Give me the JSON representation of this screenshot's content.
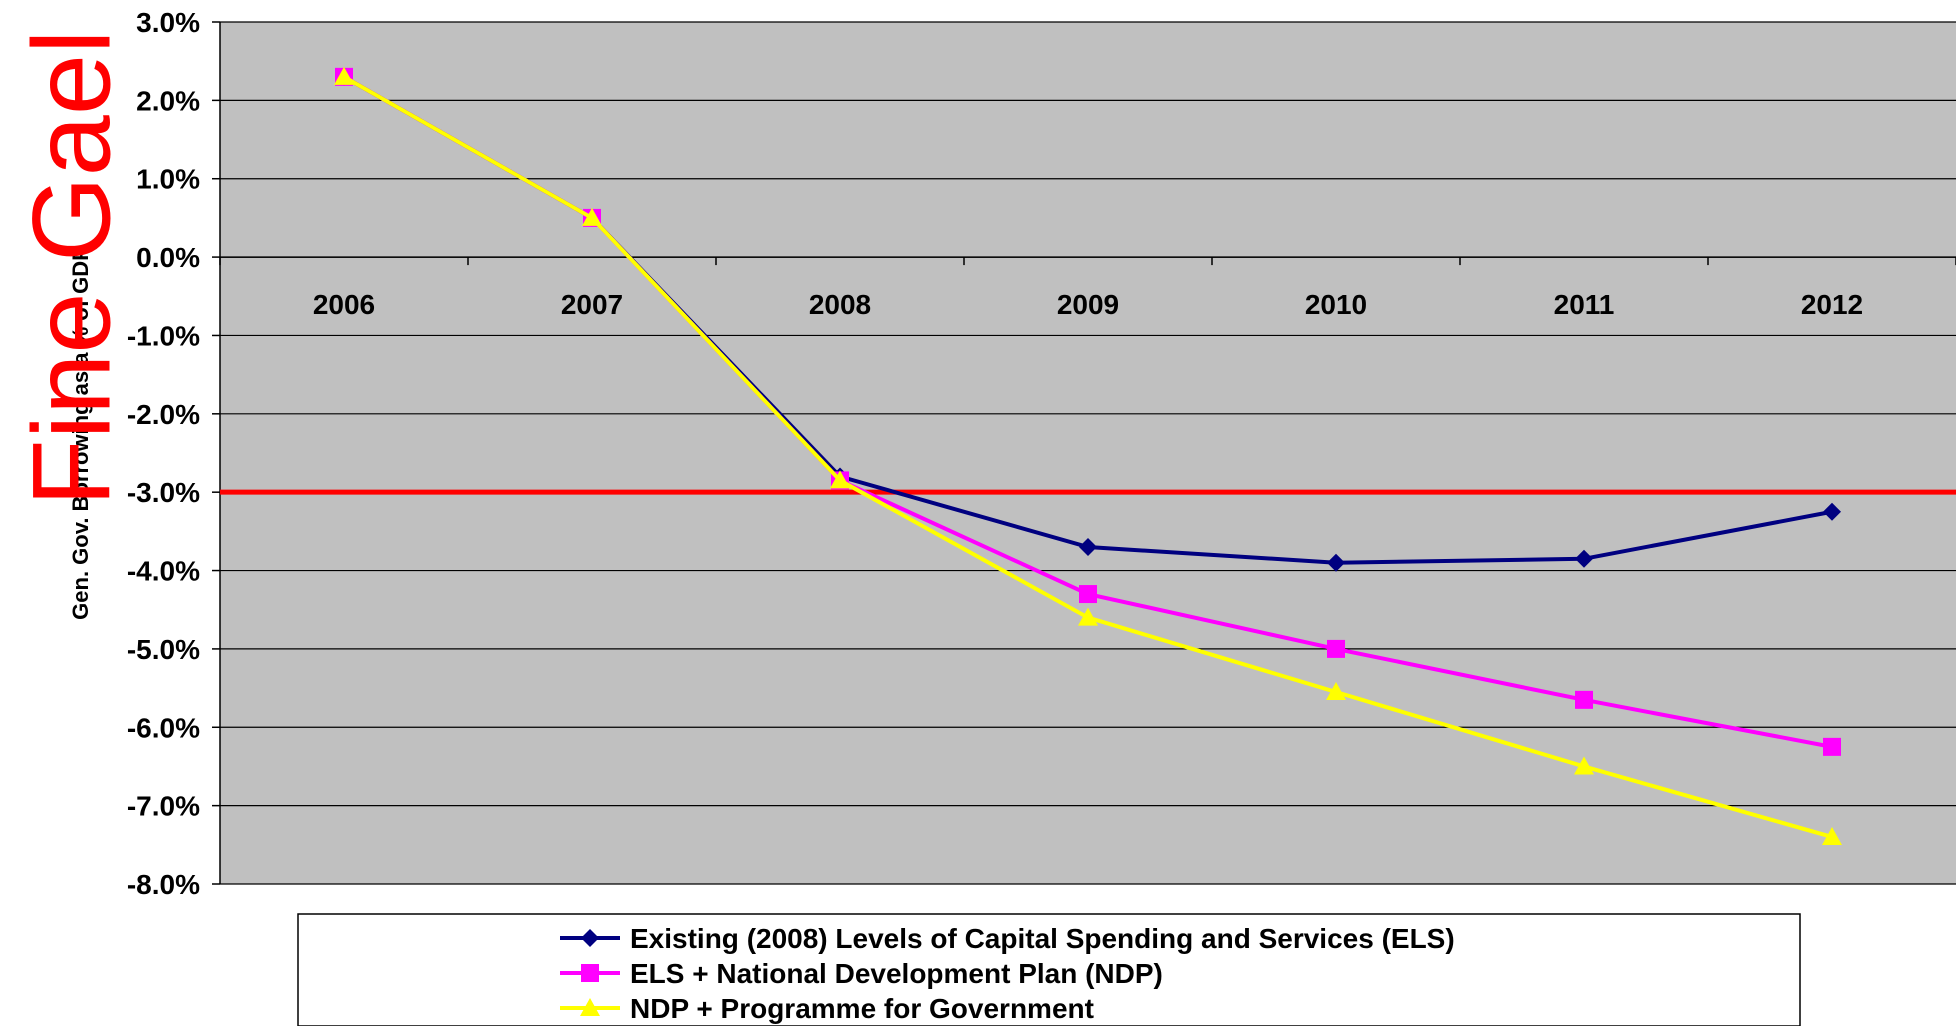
{
  "watermark": "Fine Gael",
  "chart_data": {
    "type": "line",
    "title": "",
    "ylabel": "Gen. Gov. Borrowing as a % of GDP",
    "xlabel": "",
    "x": [
      "2006",
      "2007",
      "2008",
      "2009",
      "2010",
      "2011",
      "2012"
    ],
    "ylim": [
      -8.0,
      3.0
    ],
    "yticks": [
      3.0,
      2.0,
      1.0,
      0.0,
      -1.0,
      -2.0,
      -3.0,
      -4.0,
      -5.0,
      -6.0,
      -7.0,
      -8.0
    ],
    "ytick_labels": [
      "3.0%",
      "2.0%",
      "1.0%",
      "0.0%",
      "-1.0%",
      "-2.0%",
      "-3.0%",
      "-4.0%",
      "-5.0%",
      "-6.0%",
      "-7.0%",
      "-8.0%"
    ],
    "grid": true,
    "plot_background": "#c0c0c0",
    "reference_line": {
      "y": -3.0,
      "color": "#ff0000"
    },
    "legend_position": "bottom",
    "series": [
      {
        "name": "Existing (2008) Levels of Capital Spending and Services (ELS)",
        "color": "#000080",
        "marker": "diamond",
        "values": [
          2.3,
          0.5,
          -2.8,
          -3.7,
          -3.9,
          -3.85,
          -3.25
        ]
      },
      {
        "name": "ELS + National Development Plan (NDP)",
        "color": "#ff00ff",
        "marker": "square",
        "values": [
          2.3,
          0.5,
          -2.85,
          -4.3,
          -5.0,
          -5.65,
          -6.25
        ]
      },
      {
        "name": "NDP + Programme for Government",
        "color": "#ffff00",
        "marker": "triangle",
        "values": [
          2.3,
          0.5,
          -2.85,
          -4.6,
          -5.55,
          -6.5,
          -7.4
        ]
      }
    ]
  }
}
